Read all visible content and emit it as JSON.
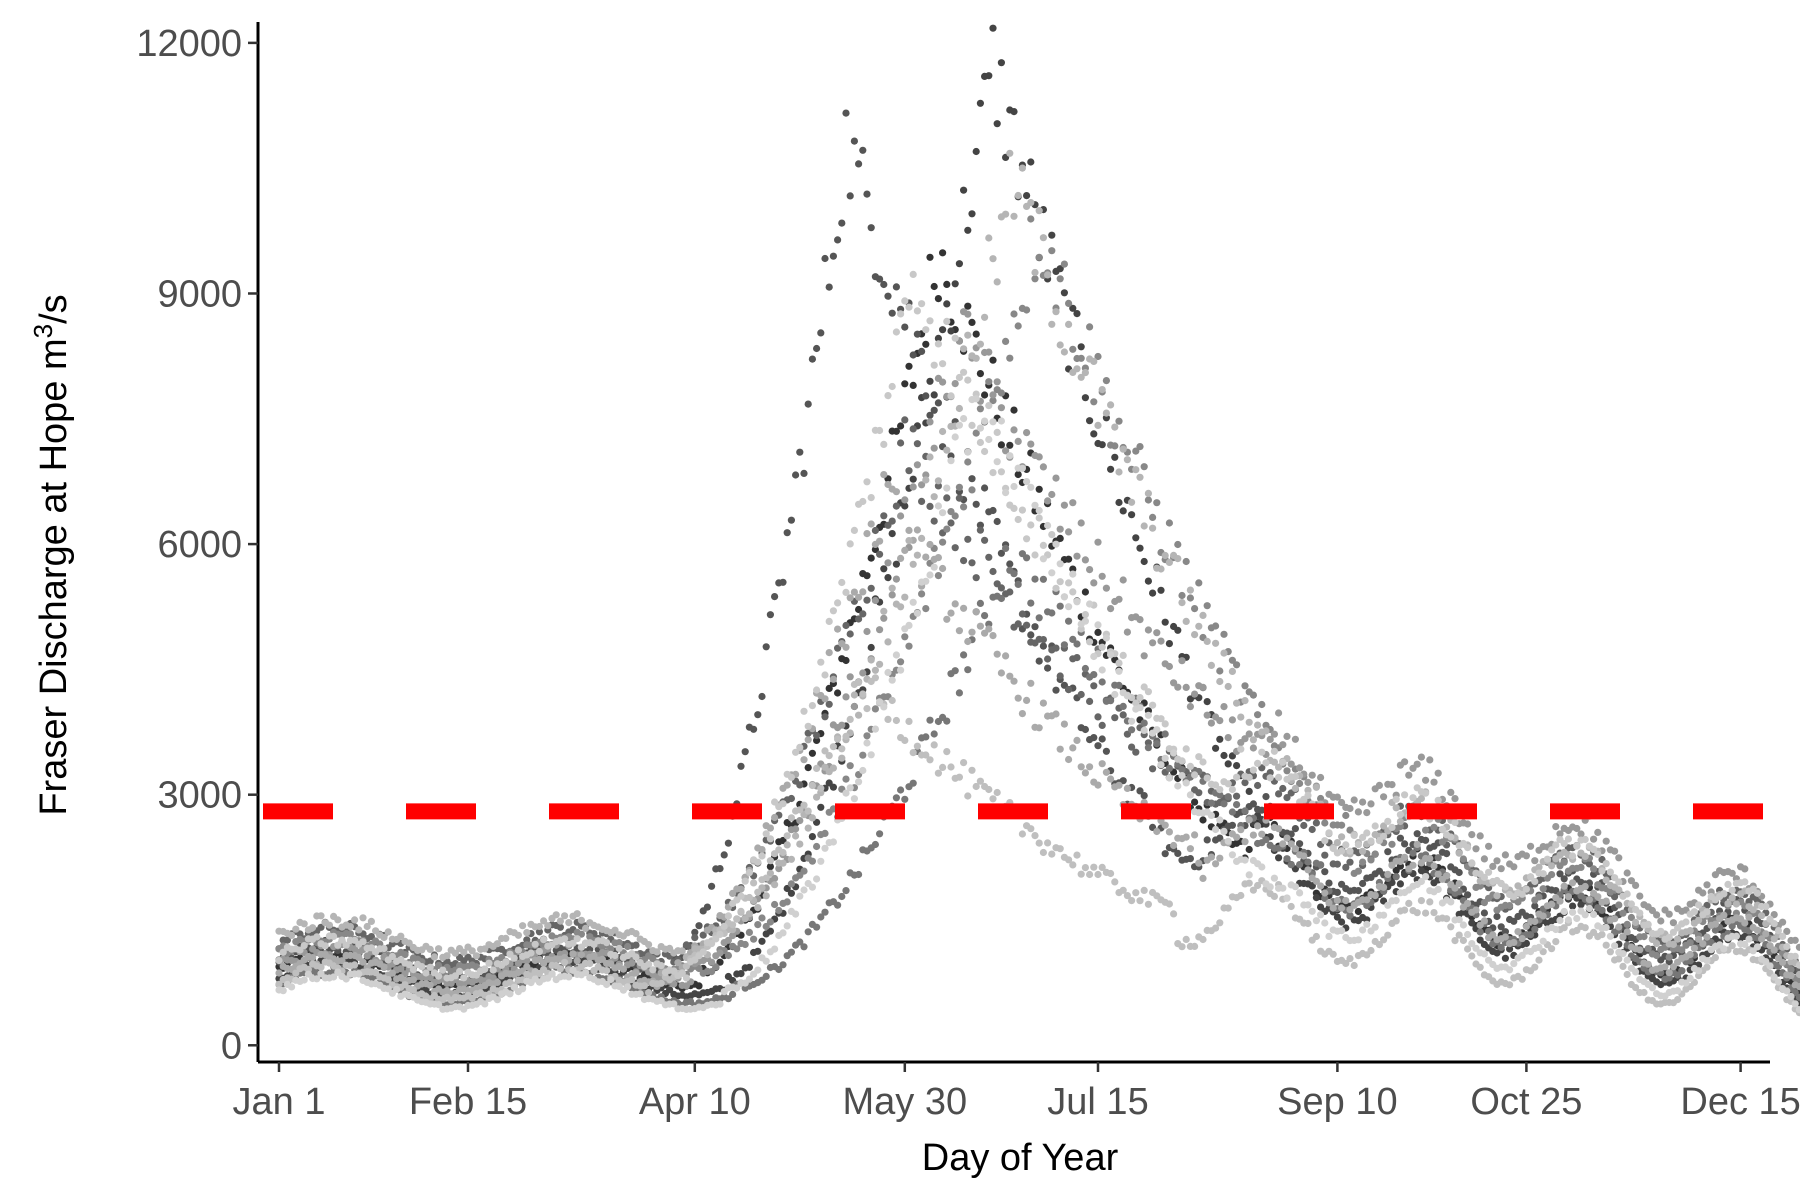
{
  "chart_data": {
    "type": "scatter",
    "xlabel": "Day of Year",
    "ylabel_main": "Fraser Discharge at Hope m",
    "ylabel_sup": "3",
    "ylabel_tail": "/s",
    "xlim": [
      -4,
      356
    ],
    "ylim": [
      -200,
      12250
    ],
    "x_ticks": [
      {
        "value": 1,
        "label": "Jan 1"
      },
      {
        "value": 46,
        "label": "Feb 15"
      },
      {
        "value": 100,
        "label": "Apr 10"
      },
      {
        "value": 150,
        "label": "May 30"
      },
      {
        "value": 196,
        "label": "Jul 15"
      },
      {
        "value": 253,
        "label": "Sep 10"
      },
      {
        "value": 298,
        "label": "Oct 25"
      },
      {
        "value": 349,
        "label": "Dec 15"
      }
    ],
    "y_ticks": [
      {
        "value": 0,
        "label": "0"
      },
      {
        "value": 3000,
        "label": "3000"
      },
      {
        "value": 6000,
        "label": "6000"
      },
      {
        "value": 9000,
        "label": "9000"
      },
      {
        "value": 12000,
        "label": "12000"
      }
    ],
    "threshold": {
      "y": 2800,
      "color": "#ff0000",
      "style": "dashed"
    },
    "series_colors": [
      "#333333",
      "#444444",
      "#555555",
      "#666666",
      "#777777",
      "#888888",
      "#999999",
      "#aaaaaa",
      "#b5b5b5",
      "#bfbfbf",
      "#c8c8c8",
      "#d0d0d0"
    ],
    "series_profiles": [
      {
        "base_winter": 900,
        "peak": 9500,
        "peak_day": 158,
        "fall": 1500,
        "spring_day": 122
      },
      {
        "base_winter": 800,
        "peak": 11700,
        "peak_day": 171,
        "fall": 1300,
        "spring_day": 128
      },
      {
        "base_winter": 1000,
        "peak": 10800,
        "peak_day": 136,
        "fall": 1800,
        "spring_day": 115
      },
      {
        "base_winter": 1200,
        "peak": 7200,
        "peak_day": 150,
        "fall": 2000,
        "spring_day": 118
      },
      {
        "base_winter": 700,
        "peak": 5900,
        "peak_day": 175,
        "fall": 1400,
        "spring_day": 130
      },
      {
        "base_winter": 1100,
        "peak": 9800,
        "peak_day": 182,
        "fall": 1700,
        "spring_day": 126
      },
      {
        "base_winter": 950,
        "peak": 8500,
        "peak_day": 163,
        "fall": 2300,
        "spring_day": 120
      },
      {
        "base_winter": 850,
        "peak": 6500,
        "peak_day": 145,
        "fall": 1600,
        "spring_day": 112
      },
      {
        "base_winter": 1300,
        "peak": 10300,
        "peak_day": 176,
        "fall": 1900,
        "spring_day": 124
      },
      {
        "base_winter": 750,
        "peak": 4300,
        "peak_day": 140,
        "fall": 1100,
        "spring_day": 110
      },
      {
        "base_winter": 1050,
        "peak": 9200,
        "peak_day": 152,
        "fall": 2100,
        "spring_day": 119
      },
      {
        "base_winter": 650,
        "peak": 7800,
        "peak_day": 167,
        "fall": 1200,
        "spring_day": 127
      }
    ]
  }
}
